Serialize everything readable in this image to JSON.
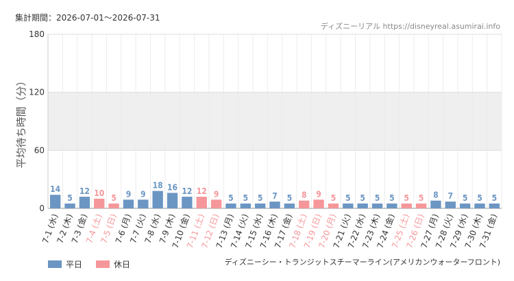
{
  "chart_data": {
    "type": "bar",
    "title": "集計期間：2026-07-01〜2026-07-31",
    "source": "ディズニーリアル https://disneyreal.asumirai.info",
    "attraction": "ディズニーシー・トランジットスチーマーライン(アメリカンウォーターフロント)",
    "y_label": "平均待ち時間（分）",
    "categories": [
      "7-1 (水)",
      "7-2 (木)",
      "7-3 (金)",
      "7-4 (土)",
      "7-5 (日)",
      "7-6 (月)",
      "7-7 (火)",
      "7-8 (水)",
      "7-9 (木)",
      "7-10 (金)",
      "7-11 (土)",
      "7-12 (日)",
      "7-13 (月)",
      "7-14 (火)",
      "7-15 (水)",
      "7-16 (木)",
      "7-17 (金)",
      "7-18 (土)",
      "7-19 (日)",
      "7-20 (月)",
      "7-21 (火)",
      "7-22 (水)",
      "7-23 (木)",
      "7-24 (金)",
      "7-25 (土)",
      "7-26 (日)",
      "7-27 (月)",
      "7-28 (火)",
      "7-29 (水)",
      "7-30 (木)",
      "7-31 (金)"
    ],
    "series": [
      {
        "name": "平日",
        "color": "#6b96c3",
        "values": [
          14,
          5,
          12,
          null,
          null,
          9,
          9,
          18,
          16,
          12,
          null,
          null,
          5,
          5,
          5,
          7,
          5,
          null,
          null,
          null,
          5,
          5,
          5,
          5,
          null,
          null,
          8,
          7,
          5,
          5,
          5
        ]
      },
      {
        "name": "休日",
        "color": "#f5979a",
        "values": [
          null,
          null,
          null,
          10,
          5,
          null,
          null,
          null,
          null,
          null,
          12,
          9,
          null,
          null,
          null,
          null,
          null,
          8,
          9,
          5,
          null,
          null,
          null,
          null,
          5,
          5,
          null,
          null,
          null,
          null,
          null
        ]
      }
    ],
    "ylim": [
      0,
      180
    ],
    "yticks": [
      0,
      60,
      120,
      180
    ],
    "shaded_band": [
      60,
      120
    ],
    "grid": true,
    "legend": "bottom-left"
  }
}
